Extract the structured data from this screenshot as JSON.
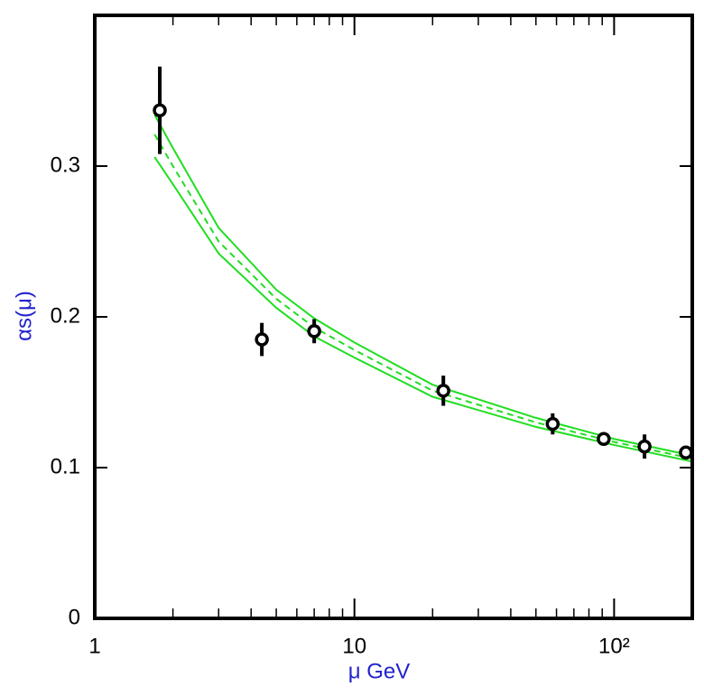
{
  "chart_data": {
    "type": "scatter",
    "xlabel": "μ GeV",
    "ylabel": "αs(μ)",
    "xscale": "log",
    "xlim": [
      1,
      200
    ],
    "ylim": [
      0,
      0.4
    ],
    "xticks": [
      1,
      10,
      {
        "value": 100,
        "label": "10²"
      }
    ],
    "xminorticks": [
      2,
      3,
      4,
      5,
      6,
      7,
      8,
      9,
      20,
      30,
      40,
      50,
      60,
      70,
      80,
      90,
      200
    ],
    "yticks": [
      0,
      0.1,
      0.2,
      0.3
    ],
    "points": {
      "color": "#000000",
      "x": [
        1.78,
        4.4,
        7.0,
        22.0,
        58.0,
        91.2,
        131,
        189
      ],
      "values": [
        0.337,
        0.185,
        0.1905,
        0.151,
        0.129,
        0.119,
        0.114,
        0.11
      ],
      "errors": [
        0.029,
        0.011,
        0.008,
        0.01,
        0.007,
        0.002,
        0.008,
        0.004
      ]
    },
    "x": [
      1.7,
      2,
      3,
      5,
      7,
      10,
      20,
      50,
      100,
      200
    ],
    "curves": [
      {
        "color": "#22dd22",
        "dashed": false,
        "values": [
          0.334,
          0.312,
          0.259,
          0.218,
          0.199,
          0.183,
          0.155,
          0.133,
          0.119,
          0.108
        ]
      },
      {
        "color": "#22dd22",
        "dashed": true,
        "values": [
          0.321,
          0.3,
          0.25,
          0.212,
          0.193,
          0.178,
          0.151,
          0.13,
          0.117,
          0.106
        ]
      },
      {
        "color": "#22dd22",
        "dashed": false,
        "values": [
          0.306,
          0.288,
          0.242,
          0.206,
          0.187,
          0.173,
          0.147,
          0.127,
          0.115,
          0.104
        ]
      }
    ]
  }
}
